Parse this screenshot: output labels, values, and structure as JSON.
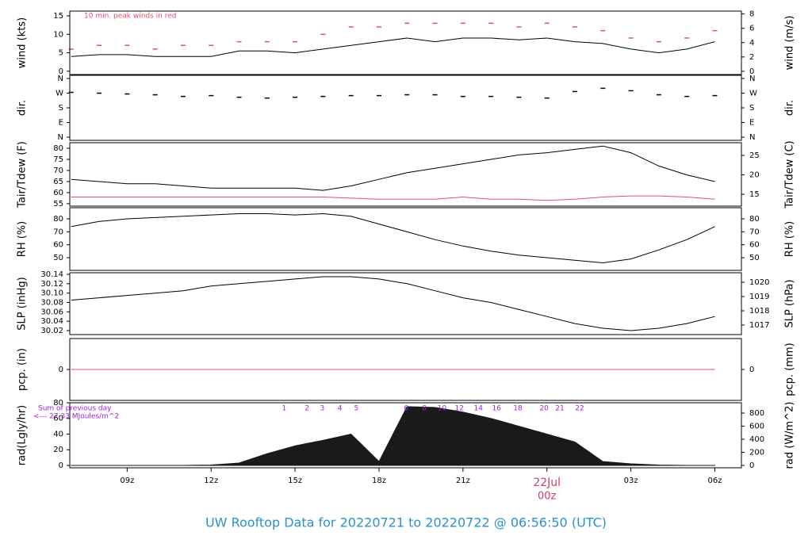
{
  "chart_data": [
    {
      "type": "line",
      "ylabel": "wind (kts)",
      "y2label": "wind (m/s)",
      "annotation": "10 min. peak winds in red",
      "xlim": [
        6.95,
        30.95
      ],
      "x": [
        7,
        8,
        9,
        10,
        11,
        12,
        13,
        14,
        15,
        16,
        17,
        18,
        19,
        20,
        21,
        22,
        23,
        24,
        25,
        26,
        27,
        28,
        29,
        30
      ],
      "ylim": [
        -0.9,
        16.3
      ],
      "yticks": [
        0,
        5,
        10,
        15
      ],
      "y2lim": [
        -0.45,
        8.4
      ],
      "y2ticks": [
        0,
        2,
        4,
        6,
        8
      ],
      "series": [
        {
          "name": "wind",
          "color": "#000000",
          "style": "line",
          "values": [
            4,
            4.5,
            4.5,
            4,
            4,
            4,
            5.5,
            5.5,
            5,
            6,
            7,
            8,
            9,
            8,
            9,
            9,
            8.5,
            9,
            8,
            7.5,
            6,
            5,
            6,
            8
          ]
        },
        {
          "name": "peak",
          "color": "#e0506a",
          "style": "dash",
          "values": [
            6,
            7,
            7,
            6,
            7,
            7,
            8,
            8,
            8,
            10,
            12,
            12,
            13,
            13,
            13,
            13,
            12,
            13,
            12,
            11,
            9,
            8,
            9,
            11
          ]
        }
      ]
    },
    {
      "type": "scatter",
      "ylabel": "dir.",
      "y2label": "dir.",
      "xlim": [
        6.95,
        30.95
      ],
      "x": [
        7,
        8,
        9,
        10,
        11,
        12,
        13,
        14,
        15,
        16,
        17,
        18,
        19,
        20,
        21,
        22,
        23,
        24,
        25,
        26,
        27,
        28,
        29,
        30
      ],
      "ylim": [
        -19.5,
        379.5
      ],
      "yticks": [
        {
          "value": 0,
          "label": "N"
        },
        {
          "value": 90,
          "label": "E"
        },
        {
          "value": 180,
          "label": "S"
        },
        {
          "value": 270,
          "label": "W"
        },
        {
          "value": 360,
          "label": "N"
        }
      ],
      "y2lim": [
        -19.5,
        379.5
      ],
      "y2ticks": [
        {
          "value": 0,
          "label": "N"
        },
        {
          "value": 90,
          "label": "E"
        },
        {
          "value": 180,
          "label": "S"
        },
        {
          "value": 270,
          "label": "W"
        },
        {
          "value": 360,
          "label": "N"
        }
      ],
      "series": [
        {
          "name": "dir",
          "color": "#000000",
          "style": "dash",
          "values": [
            275,
            270,
            265,
            260,
            250,
            255,
            245,
            240,
            245,
            250,
            255,
            255,
            260,
            260,
            250,
            250,
            245,
            240,
            280,
            300,
            285,
            260,
            250,
            255
          ]
        }
      ]
    },
    {
      "type": "line",
      "ylabel": "Tair/Tdew (F)",
      "y2label": "Tair/Tdew (C)",
      "xlim": [
        6.95,
        30.95
      ],
      "x": [
        7,
        8,
        9,
        10,
        11,
        12,
        13,
        14,
        15,
        16,
        17,
        18,
        19,
        20,
        21,
        22,
        23,
        24,
        25,
        26,
        27,
        28,
        29,
        30
      ],
      "ylim": [
        53.9,
        82.5
      ],
      "yticks": [
        55,
        60,
        65,
        70,
        75,
        80
      ],
      "y2lim": [
        11.94,
        28.27
      ],
      "y2ticks": [
        15,
        20,
        25
      ],
      "series": [
        {
          "name": "Tair",
          "color": "#000000",
          "style": "line",
          "values": [
            66,
            65,
            64,
            64,
            63,
            62,
            62,
            62,
            62,
            61,
            63,
            66,
            69,
            71,
            73,
            75,
            77,
            78,
            79.5,
            81,
            78,
            72,
            68,
            65
          ]
        },
        {
          "name": "Tdew",
          "color": "#e0506a",
          "style": "line",
          "values": [
            58,
            58,
            58,
            58,
            58,
            58,
            58,
            58,
            58,
            58,
            57.5,
            57,
            57,
            57,
            58,
            57,
            57,
            56.5,
            57,
            58,
            58.5,
            58.5,
            58,
            57
          ]
        }
      ]
    },
    {
      "type": "line",
      "ylabel": "RH (%)",
      "y2label": "RH (%)",
      "xlim": [
        6.95,
        30.95
      ],
      "x": [
        7,
        8,
        9,
        10,
        11,
        12,
        13,
        14,
        15,
        16,
        17,
        18,
        19,
        20,
        21,
        22,
        23,
        24,
        25,
        26,
        27,
        28,
        29,
        30
      ],
      "ylim": [
        40.2,
        88.6
      ],
      "yticks": [
        50,
        60,
        70,
        80
      ],
      "y2lim": [
        40.2,
        88.6
      ],
      "y2ticks": [
        50,
        60,
        70,
        80
      ],
      "series": [
        {
          "name": "RH",
          "color": "#000000",
          "style": "line",
          "values": [
            74,
            78,
            80,
            81,
            82,
            83,
            84,
            84,
            83,
            84,
            82,
            76,
            70,
            64,
            59,
            55,
            52,
            50,
            48,
            46,
            49,
            56,
            64,
            74
          ]
        }
      ]
    },
    {
      "type": "line",
      "ylabel": "SLP (inHg)",
      "y2label": "SLP (hPa)",
      "xlim": [
        6.95,
        30.95
      ],
      "x": [
        7,
        8,
        9,
        10,
        11,
        12,
        13,
        14,
        15,
        16,
        17,
        18,
        19,
        20,
        21,
        22,
        23,
        24,
        25,
        26,
        27,
        28,
        29,
        30
      ],
      "ylim": [
        30.0115,
        30.1434
      ],
      "yticks": [
        30.02,
        30.04,
        30.06,
        30.08,
        {
          "value": 30.1,
          "label": "30.10"
        },
        30.12,
        30.14
      ],
      "y2lim": [
        1016.33,
        1020.67
      ],
      "y2ticks": [
        1017,
        1018,
        1019,
        1020
      ],
      "series": [
        {
          "name": "SLP",
          "color": "#000000",
          "style": "line",
          "values": [
            30.085,
            30.09,
            30.095,
            30.1,
            30.105,
            30.115,
            30.12,
            30.125,
            30.13,
            30.135,
            30.135,
            30.13,
            30.12,
            30.105,
            30.09,
            30.08,
            30.065,
            30.05,
            30.035,
            30.025,
            30.02,
            30.025,
            30.035,
            30.05
          ]
        }
      ]
    },
    {
      "type": "line",
      "ylabel": "pcp. (in)",
      "y2label": "pcp. (mm)",
      "xlim": [
        6.95,
        30.95
      ],
      "x": [
        7,
        8,
        9,
        10,
        11,
        12,
        13,
        14,
        15,
        16,
        17,
        18,
        19,
        20,
        21,
        22,
        23,
        24,
        25,
        26,
        27,
        28,
        29,
        30
      ],
      "ylim": [
        -1,
        1
      ],
      "yticks": [
        0
      ],
      "y2lim": [
        -1,
        1
      ],
      "y2ticks": [
        0
      ],
      "series": [
        {
          "name": "pcp",
          "color": "#e0506a",
          "style": "line",
          "values": [
            0,
            0,
            0,
            0,
            0,
            0,
            0,
            0,
            0,
            0,
            0,
            0,
            0,
            0,
            0,
            0,
            0,
            0,
            0,
            0,
            0,
            0,
            0,
            0
          ]
        }
      ]
    },
    {
      "type": "area",
      "ylabel": "rad(Lgly/hr)",
      "y2label": "rad (W/m^2)",
      "xlim": [
        6.95,
        30.95
      ],
      "x": [
        7,
        8,
        9,
        10,
        11,
        12,
        13,
        14,
        15,
        16,
        17,
        18,
        19,
        20,
        21,
        22,
        23,
        24,
        25,
        26,
        27,
        28,
        29,
        30
      ],
      "ylim": [
        -3.04,
        80
      ],
      "yticks": [
        0,
        20,
        40,
        60,
        80
      ],
      "y2lim": [
        -36,
        957.6
      ],
      "y2ticks": [
        0,
        200,
        400,
        600,
        800
      ],
      "xticks": [
        {
          "value": 9,
          "label": "09z"
        },
        {
          "value": 12,
          "label": "12z"
        },
        {
          "value": 15,
          "label": "15z"
        },
        {
          "value": 18,
          "label": "18z"
        },
        {
          "value": 21,
          "label": "21z"
        },
        {
          "value": 24,
          "label": "00z"
        },
        {
          "value": 27,
          "label": "03z"
        },
        {
          "value": 30,
          "label": "06z"
        }
      ],
      "date_label": {
        "value": 24,
        "label": "22Jul"
      },
      "notes": [
        "Sum of previous day",
        "<--- 27.33 MJoules/m^2"
      ],
      "hour_labels": {
        "x": [
          14.61,
          15.43,
          15.97,
          16.6,
          17.19,
          18.97,
          19.62,
          20.25,
          20.87,
          21.55,
          22.2,
          22.96,
          23.9,
          24.46,
          25.17
        ],
        "labels": [
          1,
          2,
          3,
          4,
          5,
          6,
          8,
          10,
          12,
          14,
          16,
          18,
          20,
          21,
          22
        ]
      },
      "series": [
        {
          "name": "rad",
          "color": "#1a1a1a",
          "style": "area",
          "values": [
            0,
            0,
            0,
            0,
            0,
            0.5,
            3,
            15,
            25,
            32,
            40,
            5,
            75,
            74,
            68,
            60,
            50,
            40,
            30,
            5,
            2,
            0.5,
            0,
            0
          ]
        }
      ]
    }
  ],
  "footer": "UW Rooftop Data for 20220721  to  20220722 @ 06:56:50  (UTC)"
}
